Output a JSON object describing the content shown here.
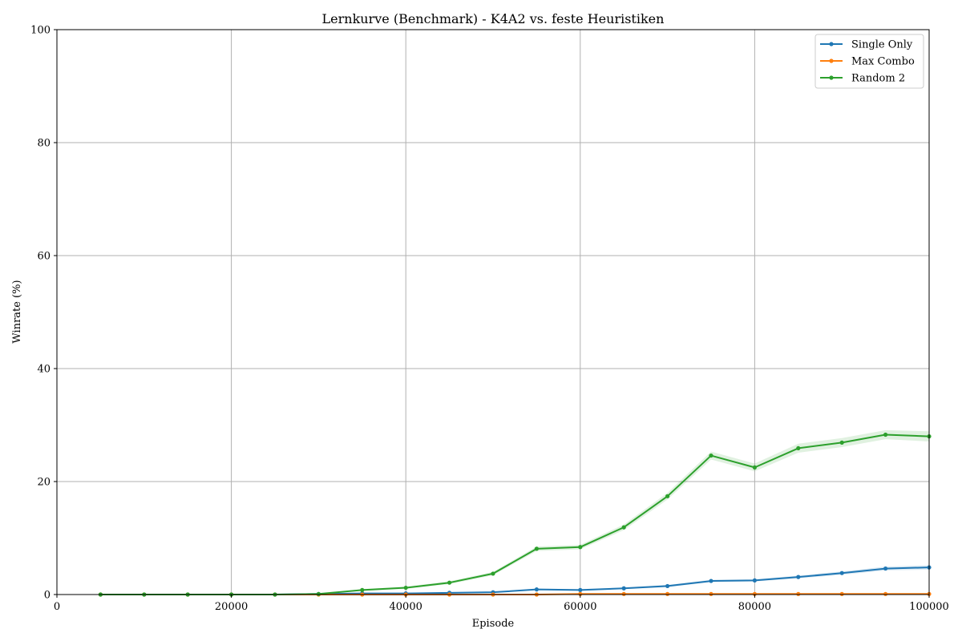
{
  "chart_data": {
    "type": "line",
    "title": "Lernkurve (Benchmark) - K4A2 vs. feste Heuristiken",
    "xlabel": "Episode",
    "ylabel": "Winrate (%)",
    "xlim": [
      0,
      100000
    ],
    "ylim": [
      0,
      100
    ],
    "xticks": [
      0,
      20000,
      40000,
      60000,
      80000,
      100000
    ],
    "yticks": [
      0,
      20,
      40,
      60,
      80,
      100
    ],
    "grid": true,
    "legend_position": "top-right",
    "x": [
      5000,
      10000,
      15000,
      20000,
      25000,
      30000,
      35000,
      40000,
      45000,
      50000,
      55000,
      60000,
      65000,
      70000,
      75000,
      80000,
      85000,
      90000,
      95000,
      100000
    ],
    "series": [
      {
        "name": "Single Only",
        "color": "#1f77b4",
        "values": [
          0,
          0,
          0,
          0,
          0,
          0.1,
          0.2,
          0.2,
          0.3,
          0.4,
          0.9,
          0.8,
          1.1,
          1.5,
          2.4,
          2.5,
          3.1,
          3.8,
          4.6,
          4.8
        ],
        "band": [
          0,
          0,
          0,
          0,
          0,
          0.05,
          0.1,
          0.1,
          0.1,
          0.1,
          0.15,
          0.15,
          0.15,
          0.2,
          0.2,
          0.2,
          0.25,
          0.3,
          0.35,
          0.4
        ]
      },
      {
        "name": "Max Combo",
        "color": "#ff7f0e",
        "values": [
          0,
          0,
          0,
          0,
          0,
          0,
          0,
          0,
          0,
          0,
          0,
          0.1,
          0.1,
          0.1,
          0.1,
          0.1,
          0.1,
          0.1,
          0.1,
          0.1
        ],
        "band": [
          0,
          0,
          0,
          0,
          0,
          0,
          0,
          0,
          0,
          0,
          0,
          0,
          0,
          0,
          0,
          0,
          0,
          0,
          0,
          0
        ]
      },
      {
        "name": "Random 2",
        "color": "#2ca02c",
        "values": [
          0,
          0,
          0,
          0,
          0,
          0.1,
          0.8,
          1.2,
          2.1,
          3.7,
          8.1,
          8.4,
          11.9,
          17.4,
          24.6,
          22.5,
          25.9,
          26.9,
          28.3,
          28.0
        ],
        "band": [
          0,
          0,
          0,
          0,
          0,
          0.05,
          0.15,
          0.2,
          0.25,
          0.3,
          0.4,
          0.4,
          0.5,
          0.6,
          0.7,
          0.7,
          0.8,
          0.8,
          0.8,
          0.9
        ]
      }
    ]
  }
}
